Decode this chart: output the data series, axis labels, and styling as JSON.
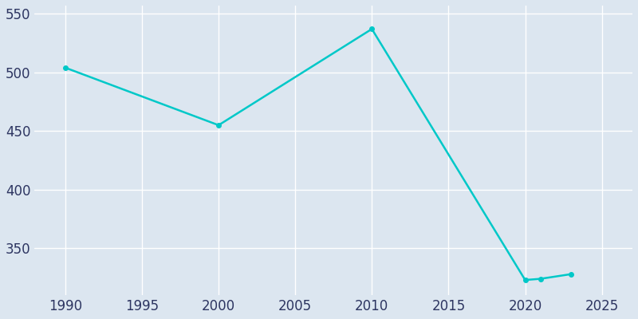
{
  "years": [
    1990,
    2000,
    2010,
    2020,
    2021,
    2023
  ],
  "population": [
    504,
    455,
    537,
    323,
    324,
    328
  ],
  "line_color": "#00c8c8",
  "marker": "o",
  "marker_size": 4,
  "line_width": 1.8,
  "background_color": "#dce6f0",
  "plot_bg_color": "#dce6f0",
  "grid_color": "#ffffff",
  "xlim": [
    1988,
    2027
  ],
  "ylim": [
    310,
    557
  ],
  "yticks": [
    350,
    400,
    450,
    500,
    550
  ],
  "xticks": [
    1990,
    1995,
    2000,
    2005,
    2010,
    2015,
    2020,
    2025
  ],
  "tick_color": "#2d3561",
  "tick_fontsize": 12
}
